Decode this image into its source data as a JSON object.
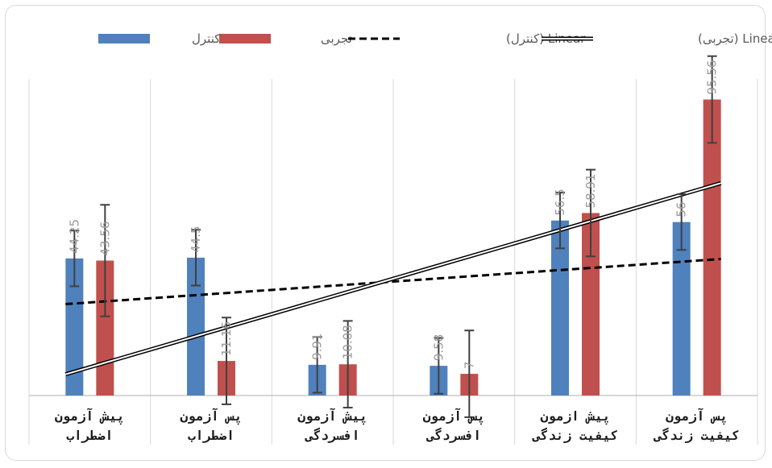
{
  "chart_data": {
    "type": "bar",
    "title": "",
    "xlabel": "",
    "ylabel": "",
    "ylim": [
      0,
      110
    ],
    "grid": false,
    "legend_position": "top",
    "categories": [
      [
        "پیش آزمون",
        "اضطراب"
      ],
      [
        "پس آزمون",
        "اضطراب"
      ],
      [
        "پیش آزمون",
        "افسردگی"
      ],
      [
        "پس آزمون",
        "افسردگی"
      ],
      [
        "پیش ازمون",
        "کیفیت زندگی"
      ],
      [
        "پس آزمون",
        "کیفیت زندگی"
      ]
    ],
    "series": [
      {
        "name": "کنترل",
        "color": "#4f81bd",
        "values": [
          44.25,
          44.5,
          9.91,
          9.58,
          56.5,
          56
        ],
        "labels": [
          "44.25",
          "44.5",
          "9.91",
          "9.58",
          "56.5",
          "56"
        ],
        "error": [
          9,
          9,
          9,
          9,
          9,
          9
        ]
      },
      {
        "name": "تجربی",
        "color": "#c0504d",
        "values": [
          43.56,
          11.16,
          10.08,
          7,
          58.91,
          95.56
        ],
        "labels": [
          "43.56",
          "11.16",
          "10.08",
          "7",
          "58.91",
          "95.56"
        ],
        "error": [
          18,
          14,
          14,
          14,
          14,
          14
        ]
      }
    ],
    "legend": [
      {
        "label": "کنترل",
        "kind": "bar",
        "color": "#4f81bd"
      },
      {
        "label": "تجربی",
        "kind": "bar",
        "color": "#c0504d"
      },
      {
        "label": "Linear (کنترل)",
        "kind": "dashed",
        "color": "#000000"
      },
      {
        "label": "Linear (تجربی)",
        "kind": "double",
        "color": "#000000"
      }
    ]
  }
}
